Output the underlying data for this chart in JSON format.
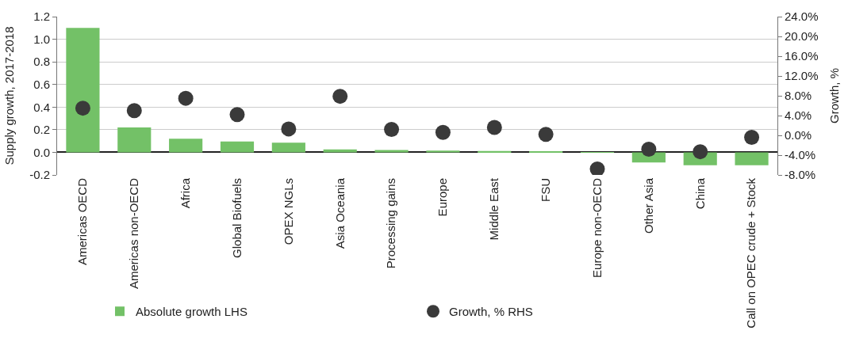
{
  "chart_data": {
    "type": "bar",
    "ylabel": "Supply growth, 2017-2018",
    "y2label": "Growth, %",
    "categories": [
      "Americas OECD",
      "Americas non-OECD",
      "Africa",
      "Global Biofuels",
      "OPEX NGLs",
      "Asia Oceania",
      "Processing gains",
      "Europe",
      "Middle East",
      "FSU",
      "Europe non-OECD",
      "Other Asia",
      "China",
      "Call on OPEC crude + Stock"
    ],
    "series": [
      {
        "name": "Absolute growth LHS",
        "color": "#73c167",
        "values": [
          1.1,
          0.22,
          0.12,
          0.095,
          0.085,
          0.025,
          0.02,
          0.015,
          0.012,
          0.01,
          -0.003,
          -0.09,
          -0.115,
          -0.115
        ]
      },
      {
        "name": "Growth, % RHS",
        "type": "scatter",
        "axis": "y2",
        "marker": "circle",
        "color": "#3a3a3a",
        "values": [
          5.5,
          5.0,
          7.5,
          4.2,
          1.3,
          7.9,
          1.2,
          0.6,
          1.6,
          0.2,
          -6.8,
          -2.8,
          -3.3,
          -0.4
        ]
      }
    ],
    "ylim": [
      -0.2,
      1.2
    ],
    "yticks": [
      {
        "value": -0.2,
        "label": "-0.2"
      },
      {
        "value": 0,
        "label": "0.0"
      },
      {
        "value": 0.2,
        "label": "0.2"
      },
      {
        "value": 0.4,
        "label": "0.4"
      },
      {
        "value": 0.6,
        "label": "0.6"
      },
      {
        "value": 0.8,
        "label": "0.8"
      },
      {
        "value": 1.0,
        "label": "1.0"
      },
      {
        "value": 1.2,
        "label": "1.2"
      }
    ],
    "y2lim": [
      -8,
      24
    ],
    "y2ticks": [
      {
        "value": -8,
        "label": "-8.0%"
      },
      {
        "value": -4,
        "label": "-4.0%"
      },
      {
        "value": 0,
        "label": "0.0%"
      },
      {
        "value": 4,
        "label": "4.0%"
      },
      {
        "value": 8,
        "label": "8.0%"
      },
      {
        "value": 12,
        "label": "12.0%"
      },
      {
        "value": 16,
        "label": "16.0%"
      },
      {
        "value": 20,
        "label": "20.0%"
      },
      {
        "value": 24,
        "label": "24.0%"
      }
    ],
    "grid": "y",
    "legend": "bottom"
  }
}
